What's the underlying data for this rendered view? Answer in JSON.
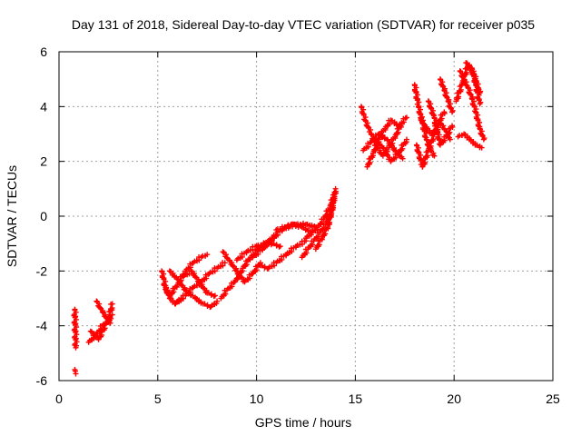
{
  "chart_data": {
    "type": "scatter",
    "title": "Day 131 of 2018, Sidereal Day-to-day VTEC variation (SDTVAR) for receiver p035",
    "xlabel": "GPS time / hours",
    "ylabel": "SDTVAR / TECUs",
    "xlim": [
      0,
      25
    ],
    "ylim": [
      -6,
      6
    ],
    "xticks": [
      0,
      5,
      10,
      15,
      20,
      25
    ],
    "yticks": [
      -6,
      -4,
      -2,
      0,
      2,
      4,
      6
    ],
    "xtick_labels": [
      "0",
      "5",
      "10",
      "15",
      "20",
      "25"
    ],
    "ytick_labels": [
      "-6",
      "-4",
      "-2",
      "0",
      "2",
      "4",
      "6"
    ],
    "grid": true,
    "marker": "+",
    "marker_color": "#ff0000",
    "series": [
      {
        "name": "SDTVAR",
        "segments": [
          {
            "x": [
              0.8,
              0.85
            ],
            "y": [
              -3.4,
              -4.8
            ]
          },
          {
            "x": [
              0.8,
              0.85
            ],
            "y": [
              -5.6,
              -5.75
            ]
          },
          {
            "x": [
              1.5,
              1.9,
              2.2,
              2.5,
              2.7
            ],
            "y": [
              -4.6,
              -4.3,
              -4.0,
              -3.8,
              -3.2
            ]
          },
          {
            "x": [
              1.6,
              2.0,
              2.4,
              2.7
            ],
            "y": [
              -4.2,
              -4.5,
              -3.9,
              -3.6
            ]
          },
          {
            "x": [
              1.9,
              2.2,
              2.6
            ],
            "y": [
              -3.1,
              -3.5,
              -3.9
            ]
          },
          {
            "x": [
              5.2,
              5.4,
              5.6,
              5.9,
              6.2
            ],
            "y": [
              -2.0,
              -2.6,
              -3.0,
              -3.2,
              -3.0
            ]
          },
          {
            "x": [
              5.3,
              5.6,
              6.0,
              6.4,
              6.8,
              7.2,
              7.5
            ],
            "y": [
              -2.5,
              -2.9,
              -2.5,
              -2.0,
              -1.7,
              -1.5,
              -1.4
            ]
          },
          {
            "x": [
              5.6,
              6.0,
              6.4,
              6.9,
              7.3,
              7.7,
              8.0
            ],
            "y": [
              -2.0,
              -2.3,
              -2.7,
              -3.0,
              -3.2,
              -3.3,
              -3.1
            ]
          },
          {
            "x": [
              6.0,
              6.4,
              6.8,
              7.2,
              7.6,
              8.0,
              8.4
            ],
            "y": [
              -3.1,
              -2.9,
              -2.6,
              -2.4,
              -2.1,
              -1.9,
              -1.7
            ]
          },
          {
            "x": [
              6.3,
              6.7,
              7.1,
              7.5,
              7.9
            ],
            "y": [
              -2.2,
              -2.0,
              -2.4,
              -2.8,
              -2.9
            ]
          },
          {
            "x": [
              8.2,
              8.5,
              8.9,
              9.3,
              9.7,
              10.1,
              10.6,
              11.0
            ],
            "y": [
              -3.0,
              -2.7,
              -2.4,
              -1.9,
              -1.5,
              -1.2,
              -0.9,
              -0.7
            ]
          },
          {
            "x": [
              8.3,
              8.6,
              9.0,
              9.4,
              9.8,
              10.2
            ],
            "y": [
              -1.3,
              -1.6,
              -2.0,
              -2.4,
              -2.1,
              -1.7
            ]
          },
          {
            "x": [
              9.0,
              9.5,
              10.0,
              10.4,
              10.8,
              11.2
            ],
            "y": [
              -1.6,
              -1.3,
              -1.1,
              -1.0,
              -1.0,
              -1.1
            ]
          },
          {
            "x": [
              9.8,
              10.3,
              10.8,
              11.3,
              11.8,
              12.3,
              12.8
            ],
            "y": [
              -1.5,
              -1.2,
              -0.8,
              -0.5,
              -0.3,
              -0.4,
              -0.6
            ]
          },
          {
            "x": [
              10.2,
              10.6,
              11.0,
              11.5,
              12.0,
              12.5
            ],
            "y": [
              -1.8,
              -1.9,
              -1.7,
              -1.4,
              -1.1,
              -0.9
            ]
          },
          {
            "x": [
              11.0,
              11.5,
              12.0,
              12.5,
              13.0
            ],
            "y": [
              -0.5,
              -0.4,
              -0.3,
              -0.3,
              -0.4
            ]
          },
          {
            "x": [
              12.3,
              12.6,
              12.9,
              13.2,
              13.5,
              13.8,
              14.0
            ],
            "y": [
              -1.5,
              -1.2,
              -0.9,
              -0.6,
              -0.3,
              0.2,
              1.0
            ]
          },
          {
            "x": [
              12.5,
              12.8,
              13.1,
              13.4,
              13.7,
              13.95
            ],
            "y": [
              -0.8,
              -0.6,
              -0.4,
              -0.1,
              0.3,
              0.8
            ]
          },
          {
            "x": [
              13.0,
              13.3,
              13.6,
              13.9
            ],
            "y": [
              -1.2,
              -0.8,
              -0.4,
              0.5
            ]
          },
          {
            "x": [
              15.3,
              15.5,
              15.8,
              16.1,
              16.4,
              16.7,
              17.0,
              17.3
            ],
            "y": [
              4.0,
              3.5,
              3.0,
              2.5,
              2.2,
              2.5,
              2.9,
              3.3
            ]
          },
          {
            "x": [
              15.4,
              15.8,
              16.2,
              16.6,
              17.0,
              17.4
            ],
            "y": [
              2.4,
              2.7,
              3.0,
              2.8,
              2.4,
              2.1
            ]
          },
          {
            "x": [
              15.6,
              15.9,
              16.2,
              16.5,
              16.8,
              17.2,
              17.6
            ],
            "y": [
              1.8,
              2.3,
              2.8,
              3.2,
              3.5,
              3.3,
              3.6
            ]
          },
          {
            "x": [
              16.0,
              16.4,
              16.8,
              17.2,
              17.6
            ],
            "y": [
              2.8,
              2.5,
              2.0,
              2.3,
              2.8
            ]
          },
          {
            "x": [
              18.0,
              18.2,
              18.4,
              18.6,
              18.8,
              19.0
            ],
            "y": [
              4.8,
              4.0,
              3.4,
              2.8,
              2.4,
              2.2
            ]
          },
          {
            "x": [
              18.1,
              18.4,
              18.7,
              19.0,
              19.3,
              19.6,
              19.8
            ],
            "y": [
              2.6,
              1.8,
              2.4,
              3.0,
              3.4,
              3.1,
              2.8
            ]
          },
          {
            "x": [
              18.3,
              18.6,
              18.9,
              19.2,
              19.5
            ],
            "y": [
              3.6,
              3.2,
              3.0,
              3.4,
              3.8
            ]
          },
          {
            "x": [
              18.7,
              19.0,
              19.3,
              19.6,
              19.9
            ],
            "y": [
              4.2,
              3.6,
              2.6,
              2.9,
              3.3
            ]
          },
          {
            "x": [
              19.3,
              19.5,
              19.7,
              19.9
            ],
            "y": [
              5.0,
              4.6,
              4.2,
              3.8
            ]
          },
          {
            "x": [
              20.2,
              20.5,
              20.8,
              21.1,
              21.4
            ],
            "y": [
              2.9,
              3.0,
              2.8,
              2.6,
              2.5
            ]
          },
          {
            "x": [
              20.3,
              20.5,
              20.7,
              20.9,
              21.1,
              21.3,
              21.5
            ],
            "y": [
              5.3,
              5.0,
              4.7,
              4.3,
              3.8,
              3.2,
              2.8
            ]
          },
          {
            "x": [
              20.1,
              20.4,
              20.7,
              21.0,
              21.3
            ],
            "y": [
              4.2,
              4.8,
              5.5,
              5.2,
              4.5
            ]
          },
          {
            "x": [
              20.6,
              20.9,
              21.1,
              21.3
            ],
            "y": [
              5.6,
              5.4,
              4.8,
              4.1
            ]
          }
        ]
      }
    ]
  }
}
